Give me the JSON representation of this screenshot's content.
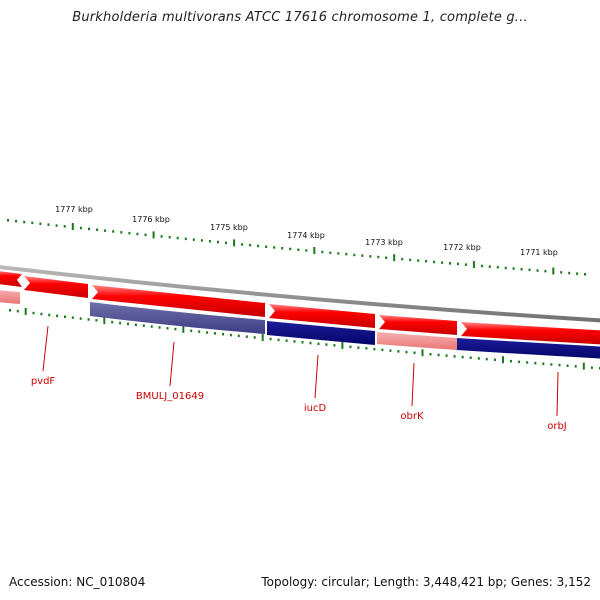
{
  "title": "Burkholderia multivorans ATCC 17616 chromosome 1, complete g...",
  "footer": {
    "accession": "Accession: NC_010804",
    "summary": "Topology: circular; Length: 3,448,421 bp; Genes: 3,152"
  },
  "ruler": {
    "unit": "kbp",
    "ticks": [
      "1777 kbp",
      "1776 kbp",
      "1775 kbp",
      "1774 kbp",
      "1773 kbp",
      "1772 kbp",
      "1771 kbp"
    ]
  },
  "genes": [
    {
      "label": "pvdF"
    },
    {
      "label": "BMULJ_01649"
    },
    {
      "label": "iucD"
    },
    {
      "label": "obrK"
    },
    {
      "label": "orbJ"
    }
  ],
  "colors": {
    "forward_gene": "#ff0000",
    "forward_gene_light": "#f08080",
    "reverse_gene": "#0a0a80",
    "reverse_gene_muted": "#4a4a8e",
    "backbone": "#8c8c8c",
    "tick": "#1a7a1a",
    "label": "#cc0000"
  }
}
